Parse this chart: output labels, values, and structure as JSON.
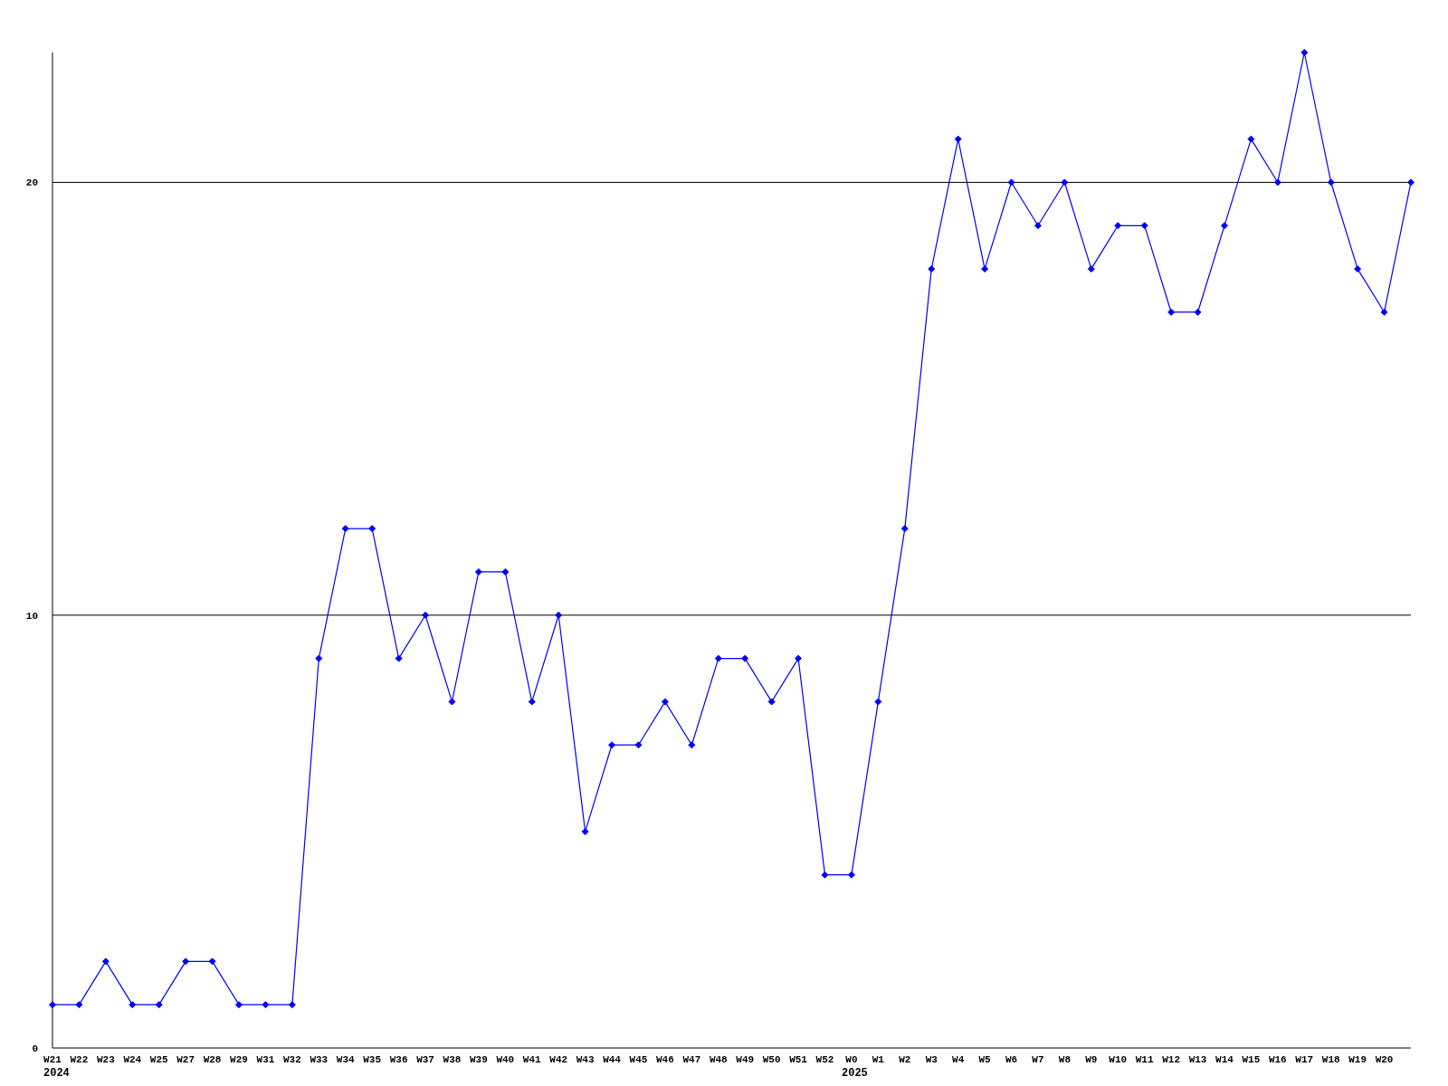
{
  "chart_data": {
    "type": "line",
    "categories": [
      "W21",
      "W22",
      "W23",
      "W24",
      "W25",
      "W27",
      "W28",
      "W29",
      "W31",
      "W32",
      "W33",
      "W34",
      "W35",
      "W36",
      "W37",
      "W38",
      "W39",
      "W40",
      "W41",
      "W42",
      "W43",
      "W44",
      "W45",
      "W46",
      "W47",
      "W48",
      "W49",
      "W50",
      "W51",
      "W52",
      "W0",
      "W1",
      "W2",
      "W3",
      "W4",
      "W5",
      "W6",
      "W7",
      "W8",
      "W9",
      "W10",
      "W11",
      "W12",
      "W13",
      "W14",
      "W15",
      "W16",
      "W17",
      "W18",
      "W19",
      "W20",
      null
    ],
    "series": [
      {
        "color": "#0000ff",
        "values": [
          1,
          1,
          2,
          1,
          1,
          2,
          2,
          1,
          1,
          1,
          9,
          12,
          12,
          9,
          10,
          8,
          11,
          11,
          8,
          10,
          5,
          7,
          7,
          8,
          7,
          9,
          9,
          8,
          9,
          4,
          4,
          8,
          12,
          18,
          21,
          18,
          20,
          19,
          20,
          18,
          19,
          19,
          17,
          17,
          19,
          21,
          20,
          23,
          20,
          18,
          17,
          20
        ]
      }
    ],
    "ylim": [
      0,
      23
    ],
    "yticks": [
      0,
      10,
      20
    ],
    "grid": "y",
    "marker": "diamond",
    "line_style": "solid",
    "annotations": [
      "2024",
      "2025"
    ]
  }
}
